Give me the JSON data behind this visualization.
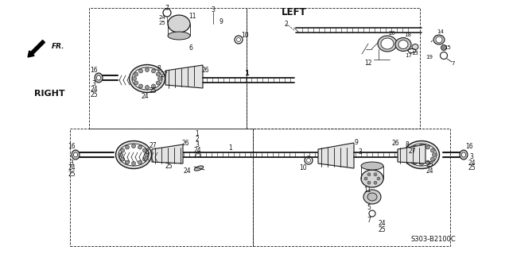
{
  "bg_color": "#ffffff",
  "line_color": "#1a1a1a",
  "text_color": "#111111",
  "part_number_code": "S303-B2100C",
  "left_label": "LEFT",
  "right_label": "RIGHT",
  "fr_label": "FR.",
  "fig_width": 6.4,
  "fig_height": 3.2,
  "dpi": 100
}
